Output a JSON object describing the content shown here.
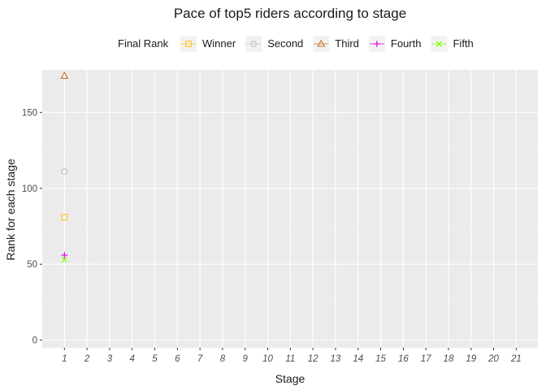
{
  "chart_data": {
    "type": "scatter",
    "title": "Pace of top5 riders according to stage",
    "xlabel": "Stage",
    "ylabel": "Rank for each stage",
    "legend_title": "Final Rank",
    "legend_position": "top",
    "grid": true,
    "background": "#ebebeb",
    "categories": [
      "1",
      "2",
      "3",
      "4",
      "5",
      "6",
      "7",
      "8",
      "9",
      "10",
      "11",
      "12",
      "13",
      "14",
      "15",
      "16",
      "17",
      "18",
      "19",
      "20",
      "21"
    ],
    "ylim": [
      -5,
      178
    ],
    "yticks": [
      0,
      50,
      100,
      150
    ],
    "series": [
      {
        "name": "Winner",
        "color": "#ffc125",
        "shape": "square",
        "points": [
          {
            "x": "1",
            "y": 81
          }
        ]
      },
      {
        "name": "Second",
        "color": "#bfbfbf",
        "shape": "circle",
        "points": [
          {
            "x": "1",
            "y": 111
          }
        ]
      },
      {
        "name": "Third",
        "color": "#c87533",
        "shape": "triangle",
        "points": [
          {
            "x": "1",
            "y": 174
          }
        ]
      },
      {
        "name": "Fourth",
        "color": "#e600e6",
        "shape": "plus",
        "points": [
          {
            "x": "1",
            "y": 56
          }
        ]
      },
      {
        "name": "Fifth",
        "color": "#7fff00",
        "shape": "cross",
        "points": [
          {
            "x": "1",
            "y": 53
          }
        ]
      }
    ]
  }
}
